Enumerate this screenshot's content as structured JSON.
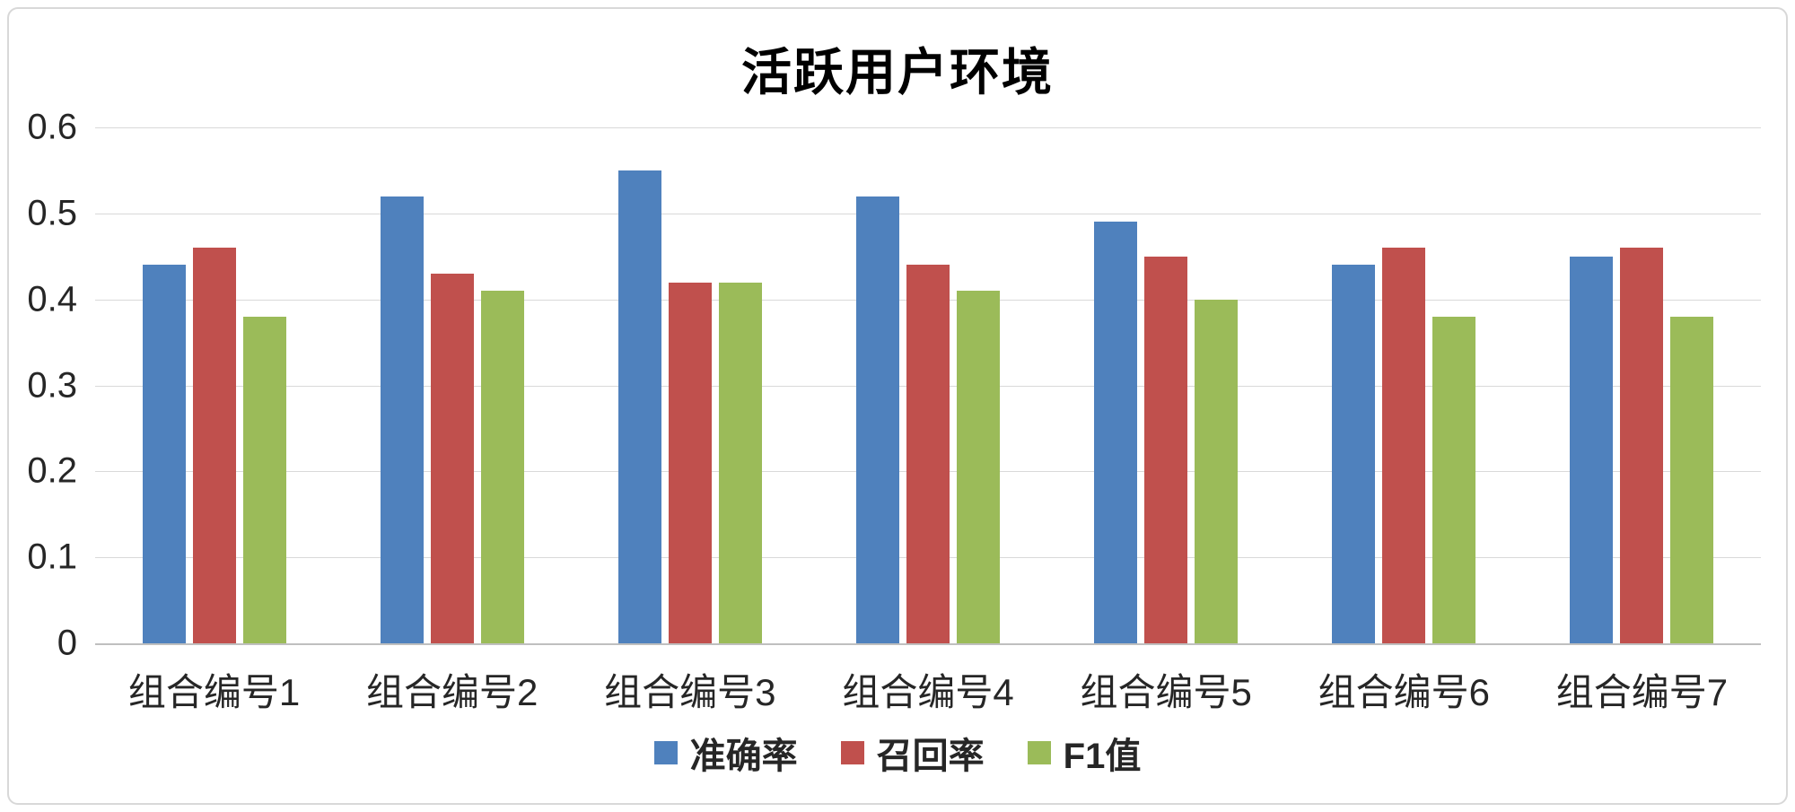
{
  "chart_data": {
    "type": "bar",
    "title": "活跃用户环境",
    "categories": [
      "组合编号1",
      "组合编号2",
      "组合编号3",
      "组合编号4",
      "组合编号5",
      "组合编号6",
      "组合编号7"
    ],
    "series": [
      {
        "name": "准确率",
        "color": "#4F81BD",
        "values": [
          0.44,
          0.52,
          0.55,
          0.52,
          0.49,
          0.44,
          0.45
        ]
      },
      {
        "name": "召回率",
        "color": "#C0504D",
        "values": [
          0.46,
          0.43,
          0.42,
          0.44,
          0.45,
          0.46,
          0.46
        ]
      },
      {
        "name": "F1值",
        "color": "#9BBB59",
        "values": [
          0.38,
          0.41,
          0.42,
          0.41,
          0.4,
          0.38,
          0.38
        ]
      }
    ],
    "ylim": [
      0,
      0.6
    ],
    "ytick_step": 0.1,
    "yticks": [
      "0",
      "0.1",
      "0.2",
      "0.3",
      "0.4",
      "0.5",
      "0.6"
    ],
    "grid": true,
    "legend_position": "bottom",
    "gridline_color": "#D9D9D9",
    "background_color": "#FFFFFF"
  }
}
